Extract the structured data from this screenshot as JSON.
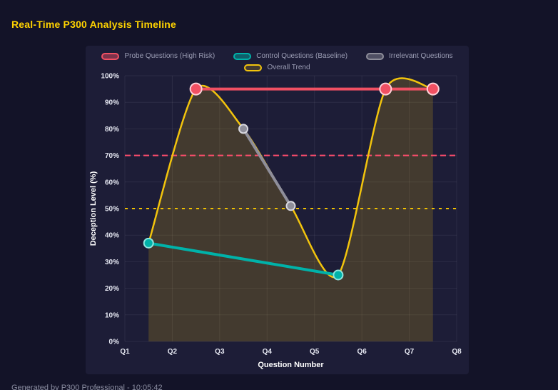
{
  "footer": {
    "text": "Generated by P300 Professional - 10:05:42"
  },
  "theme": {
    "page_bg": "#131328",
    "panel_bg": "#1d1d37",
    "title_color": "#ffd300",
    "grid_color": "rgba(255,255,255,0.07)",
    "tick_color": "#e6e8f2",
    "axis_title_color": "#ffffff",
    "legend_text_color": "#9b9db4",
    "footer_color": "#8a8ca0"
  },
  "chart_data": {
    "type": "line",
    "title": "Real-Time P300 Analysis Timeline",
    "xlabel": "Question Number",
    "ylabel": "Deception Level (%)",
    "x_ticks": [
      "Q1",
      "Q2",
      "Q3",
      "Q4",
      "Q5",
      "Q6",
      "Q7",
      "Q8"
    ],
    "y_ticks": [
      "0%",
      "10%",
      "20%",
      "30%",
      "40%",
      "50%",
      "60%",
      "70%",
      "80%",
      "90%",
      "100%"
    ],
    "xlim": [
      1,
      8
    ],
    "ylim": [
      0,
      100
    ],
    "grid": true,
    "legend_position": "top",
    "series": [
      {
        "name": "Probe Questions (High Risk)",
        "color": "#f15063",
        "marker_stroke": "#ffd1d9",
        "marker_radius": 8,
        "line_width": 4,
        "points": [
          {
            "x": 2.5,
            "y": 95
          },
          {
            "x": 6.5,
            "y": 95
          },
          {
            "x": 7.5,
            "y": 95
          }
        ]
      },
      {
        "name": "Control Questions (Baseline)",
        "color": "#00b2a9",
        "marker_stroke": "#8ee6df",
        "marker_radius": 6.5,
        "line_width": 4,
        "points": [
          {
            "x": 1.5,
            "y": 37
          },
          {
            "x": 5.5,
            "y": 25
          }
        ]
      },
      {
        "name": "Irrelevant Questions",
        "color": "#8e8e9a",
        "marker_stroke": "#d8d8e0",
        "marker_radius": 6,
        "line_width": 4,
        "points": [
          {
            "x": 3.5,
            "y": 80
          },
          {
            "x": 4.5,
            "y": 51
          }
        ]
      },
      {
        "name": "Overall Trend",
        "color": "#f2c40d",
        "line_width": 2.5,
        "smooth": true,
        "area_fill": "rgba(242,196,13,0.18)",
        "points": [
          {
            "x": 1.5,
            "y": 37
          },
          {
            "x": 2.5,
            "y": 95
          },
          {
            "x": 3.5,
            "y": 80
          },
          {
            "x": 4.5,
            "y": 51
          },
          {
            "x": 5.5,
            "y": 25
          },
          {
            "x": 6.5,
            "y": 95
          },
          {
            "x": 7.5,
            "y": 95
          }
        ]
      }
    ],
    "threshold_lines": [
      {
        "value": 70,
        "color": "#ff4d6d",
        "style": "dashed"
      },
      {
        "value": 50,
        "color": "#f0c000",
        "style": "dashed"
      }
    ]
  }
}
